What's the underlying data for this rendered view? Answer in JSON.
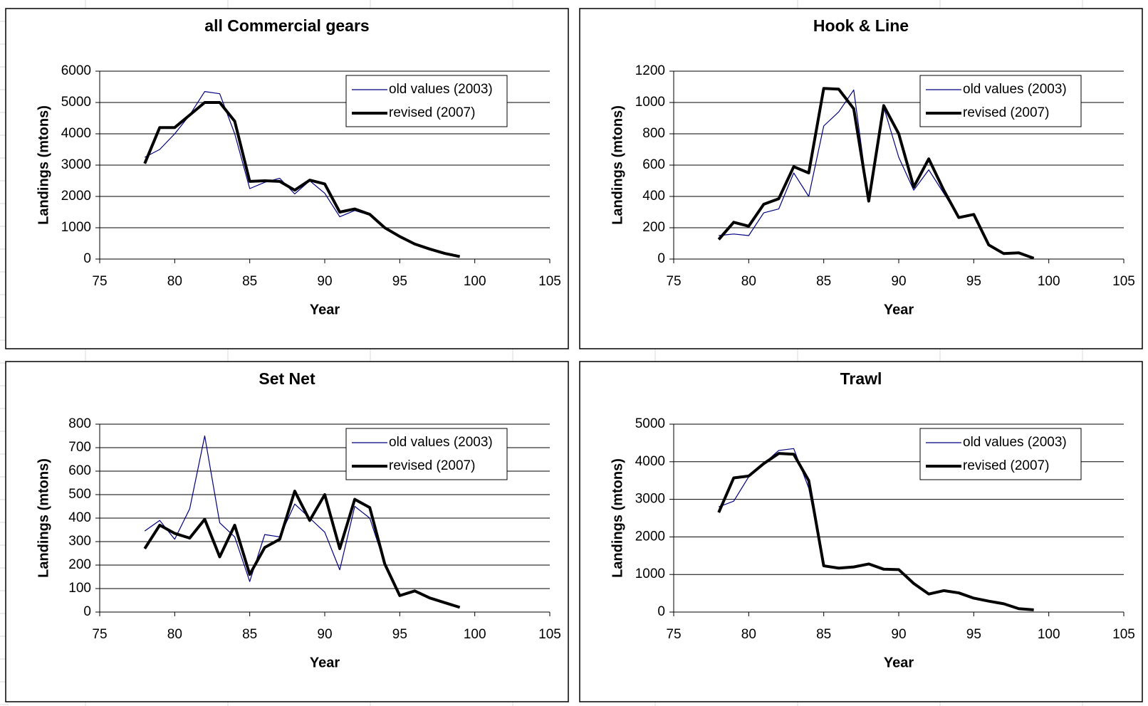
{
  "chart_data": [
    {
      "type": "line",
      "title": "all Commercial gears",
      "x_label": "Year",
      "y_label": "Landings (mtons)",
      "x": [
        78,
        79,
        80,
        81,
        82,
        83,
        84,
        85,
        86,
        87,
        88,
        89,
        90,
        91,
        92,
        93,
        94,
        95,
        96,
        97,
        98,
        99
      ],
      "series": [
        {
          "name": "old values (2003)",
          "color": "#000080",
          "line_width": 1.2,
          "values": [
            3250,
            3500,
            4000,
            4600,
            5350,
            5280,
            4000,
            2250,
            2450,
            2580,
            2080,
            2500,
            2100,
            1350,
            1550,
            1400,
            1000,
            720,
            480,
            320,
            180,
            80
          ]
        },
        {
          "name": "revised (2007)",
          "color": "#000000",
          "line_width": 4,
          "values": [
            3050,
            4200,
            4200,
            4600,
            5000,
            5000,
            4400,
            2480,
            2500,
            2480,
            2200,
            2520,
            2400,
            1500,
            1600,
            1430,
            1000,
            720,
            480,
            320,
            180,
            80
          ]
        }
      ],
      "xlim": [
        75,
        105
      ],
      "xticks": [
        75,
        80,
        85,
        90,
        95,
        100,
        105
      ],
      "ylim": [
        0,
        6000
      ],
      "yticks": [
        0,
        1000,
        2000,
        3000,
        4000,
        5000,
        6000
      ],
      "grid": true,
      "legend": "upper right"
    },
    {
      "type": "line",
      "title": "Hook & Line",
      "x_label": "Year",
      "y_label": "Landings (mtons)",
      "x": [
        78,
        79,
        80,
        81,
        82,
        83,
        84,
        85,
        86,
        87,
        88,
        89,
        90,
        91,
        92,
        93,
        94,
        95,
        96,
        97,
        98,
        99
      ],
      "series": [
        {
          "name": "old values (2003)",
          "color": "#000080",
          "line_width": 1.2,
          "values": [
            150,
            160,
            150,
            295,
            320,
            550,
            400,
            850,
            940,
            1080,
            370,
            970,
            650,
            440,
            570,
            420,
            265,
            285,
            90,
            35,
            40,
            5
          ]
        },
        {
          "name": "revised (2007)",
          "color": "#000000",
          "line_width": 4,
          "values": [
            125,
            235,
            210,
            350,
            385,
            590,
            550,
            1090,
            1085,
            960,
            370,
            980,
            800,
            460,
            640,
            440,
            265,
            285,
            90,
            35,
            40,
            5
          ]
        }
      ],
      "xlim": [
        75,
        105
      ],
      "xticks": [
        75,
        80,
        85,
        90,
        95,
        100,
        105
      ],
      "ylim": [
        0,
        1200
      ],
      "yticks": [
        0,
        200,
        400,
        600,
        800,
        1000,
        1200
      ],
      "grid": true,
      "legend": "upper right"
    },
    {
      "type": "line",
      "title": "Set Net",
      "x_label": "Year",
      "y_label": "Landings (mtons)",
      "x": [
        78,
        79,
        80,
        81,
        82,
        83,
        84,
        85,
        86,
        87,
        88,
        89,
        90,
        91,
        92,
        93,
        94,
        95,
        96,
        97,
        98,
        99
      ],
      "series": [
        {
          "name": "old values (2003)",
          "color": "#000080",
          "line_width": 1.2,
          "values": [
            345,
            390,
            310,
            440,
            750,
            380,
            320,
            130,
            330,
            320,
            460,
            400,
            340,
            180,
            450,
            400,
            205,
            70,
            90,
            60,
            40,
            20
          ]
        },
        {
          "name": "revised (2007)",
          "color": "#000000",
          "line_width": 4,
          "values": [
            270,
            370,
            335,
            315,
            395,
            235,
            370,
            160,
            275,
            310,
            515,
            390,
            500,
            270,
            480,
            445,
            205,
            70,
            90,
            60,
            40,
            20
          ]
        }
      ],
      "xlim": [
        75,
        105
      ],
      "xticks": [
        75,
        80,
        85,
        90,
        95,
        100,
        105
      ],
      "ylim": [
        0,
        800
      ],
      "yticks": [
        0,
        100,
        200,
        300,
        400,
        500,
        600,
        700,
        800
      ],
      "grid": true,
      "legend": "upper right"
    },
    {
      "type": "line",
      "title": "Trawl",
      "x_label": "Year",
      "y_label": "Landings (mtons)",
      "x": [
        78,
        79,
        80,
        81,
        82,
        83,
        84,
        85,
        86,
        87,
        88,
        89,
        90,
        91,
        92,
        93,
        94,
        95,
        96,
        97,
        98,
        99
      ],
      "series": [
        {
          "name": "old values (2003)",
          "color": "#000080",
          "line_width": 1.2,
          "values": [
            2800,
            2950,
            3600,
            3950,
            4300,
            4350,
            3300,
            1230,
            1170,
            1200,
            1280,
            1140,
            1130,
            760,
            480,
            570,
            510,
            370,
            290,
            220,
            90,
            60
          ]
        },
        {
          "name": "revised (2007)",
          "color": "#000000",
          "line_width": 4,
          "values": [
            2650,
            3570,
            3620,
            3950,
            4220,
            4200,
            3500,
            1230,
            1170,
            1200,
            1280,
            1140,
            1130,
            760,
            480,
            570,
            510,
            370,
            290,
            220,
            90,
            60
          ]
        }
      ],
      "xlim": [
        75,
        105
      ],
      "xticks": [
        75,
        80,
        85,
        90,
        95,
        100,
        105
      ],
      "ylim": [
        0,
        5000
      ],
      "yticks": [
        0,
        1000,
        2000,
        3000,
        4000,
        5000
      ],
      "grid": true,
      "legend": "upper right"
    }
  ]
}
